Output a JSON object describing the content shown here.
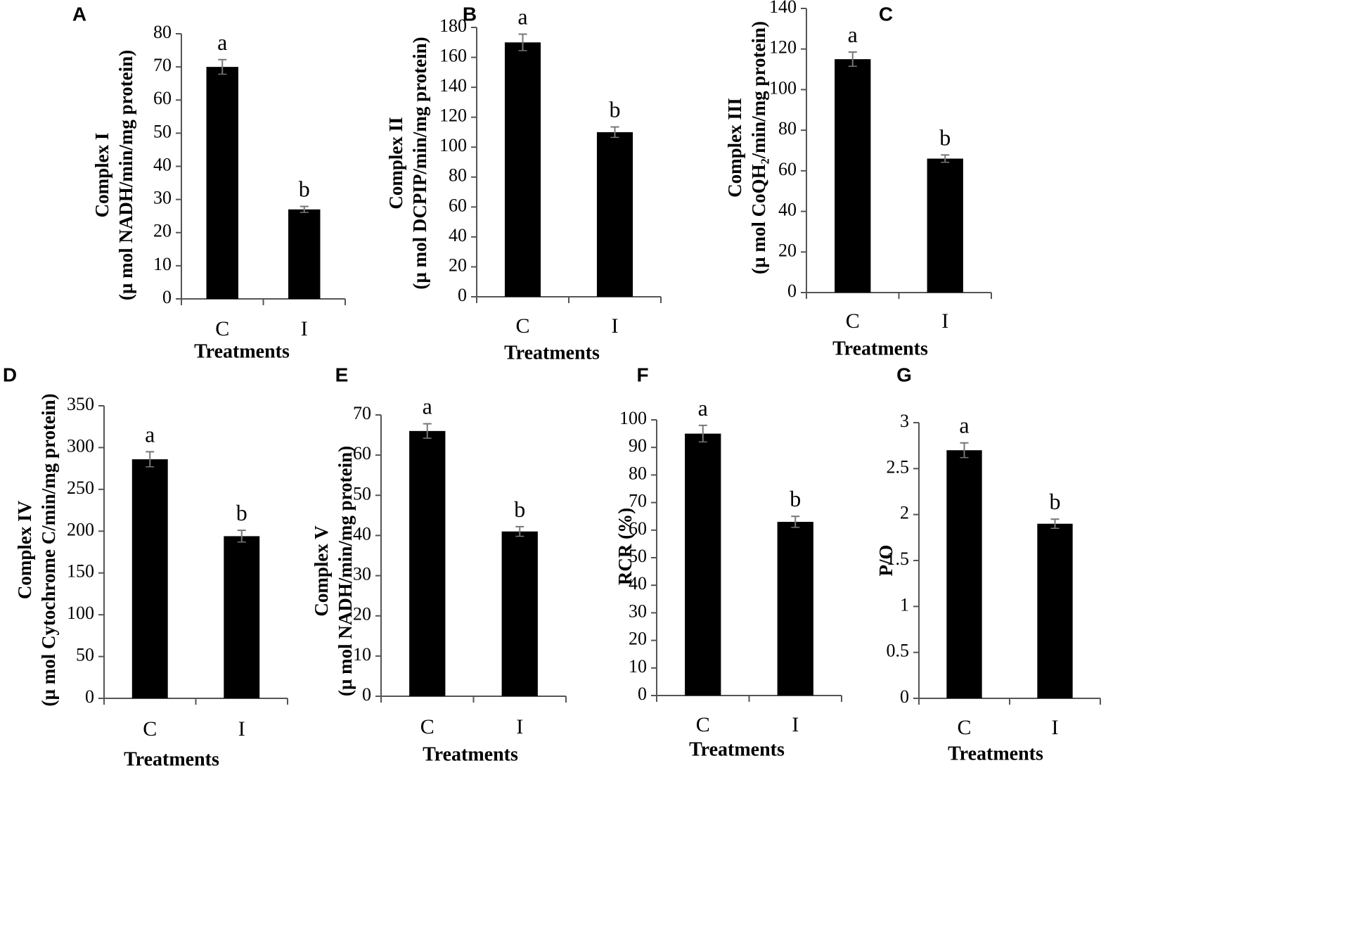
{
  "chart_data": [
    {
      "panel": "A",
      "type": "bar",
      "categories": [
        "C",
        "I"
      ],
      "values": [
        70,
        27
      ],
      "errors": [
        2.2,
        0.9
      ],
      "sig": [
        "a",
        "b"
      ],
      "ylabel_lines": [
        "Complex I",
        "(µ mol NADH/min/mg protein)"
      ],
      "xlabel": "Treatments",
      "ylim": [
        0,
        80
      ],
      "ticks": [
        "0",
        "10",
        "20",
        "30",
        "40",
        "50",
        "60",
        "70",
        "80"
      ]
    },
    {
      "panel": "B",
      "type": "bar",
      "categories": [
        "C",
        "I"
      ],
      "values": [
        170,
        110
      ],
      "errors": [
        5.5,
        3.5
      ],
      "sig": [
        "a",
        "b"
      ],
      "ylabel_lines": [
        "Complex II",
        "(µ mol DCPIP/min/mg protein)"
      ],
      "xlabel": "Treatments",
      "ylim": [
        0,
        180
      ],
      "ticks": [
        "0",
        "20",
        "40",
        "60",
        "80",
        "100",
        "120",
        "140",
        "160",
        "180"
      ]
    },
    {
      "panel": "C",
      "type": "bar",
      "categories": [
        "C",
        "I"
      ],
      "values": [
        115,
        66
      ],
      "errors": [
        3.5,
        1.8
      ],
      "sig": [
        "a",
        "b"
      ],
      "ylabel_lines": [
        "Complex III",
        "(µ mol CoQH₂/min/mg protein)"
      ],
      "xlabel": "Treatments",
      "ylim": [
        0,
        140
      ],
      "ticks": [
        "0",
        "20",
        "40",
        "60",
        "80",
        "100",
        "120",
        "140"
      ]
    },
    {
      "panel": "D",
      "type": "bar",
      "categories": [
        "C",
        "I"
      ],
      "values": [
        286,
        194
      ],
      "errors": [
        9,
        7
      ],
      "sig": [
        "a",
        "b"
      ],
      "ylabel_lines": [
        "Complex IV",
        "(µ mol Cytochrome C/min/mg protein)"
      ],
      "xlabel": "Treatments",
      "ylim": [
        0,
        350
      ],
      "ticks": [
        "0",
        "50",
        "100",
        "150",
        "200",
        "250",
        "300",
        "350"
      ]
    },
    {
      "panel": "E",
      "type": "bar",
      "categories": [
        "C",
        "I"
      ],
      "values": [
        66,
        41
      ],
      "errors": [
        1.8,
        1.2
      ],
      "sig": [
        "a",
        "b"
      ],
      "ylabel_lines": [
        "Complex V",
        "(µ mol NADH/min/mg protein)"
      ],
      "xlabel": "Treatments",
      "ylim": [
        0,
        70
      ],
      "ticks": [
        "0",
        "10",
        "20",
        "30",
        "40",
        "50",
        "60",
        "70"
      ]
    },
    {
      "panel": "F",
      "type": "bar",
      "categories": [
        "C",
        "I"
      ],
      "values": [
        95,
        63
      ],
      "errors": [
        3,
        2
      ],
      "sig": [
        "a",
        "b"
      ],
      "ylabel_lines": [
        "RCR (%)"
      ],
      "xlabel": "Treatments",
      "ylim": [
        0,
        100
      ],
      "ticks": [
        "0",
        "10",
        "20",
        "30",
        "40",
        "50",
        "60",
        "70",
        "80",
        "90",
        "100"
      ]
    },
    {
      "panel": "G",
      "type": "bar",
      "categories": [
        "C",
        "I"
      ],
      "values": [
        2.7,
        1.9
      ],
      "errors": [
        0.08,
        0.05
      ],
      "sig": [
        "a",
        "b"
      ],
      "ylabel_lines": [
        "P/O"
      ],
      "xlabel": "Treatments",
      "ylim": [
        0,
        3
      ],
      "ticks": [
        "0",
        "0.5",
        "1",
        "1.5",
        "2",
        "2.5",
        "3"
      ]
    }
  ],
  "colors": {
    "bar": "#000000",
    "axis": "#555555",
    "error": "#777777",
    "text": "#000000"
  }
}
